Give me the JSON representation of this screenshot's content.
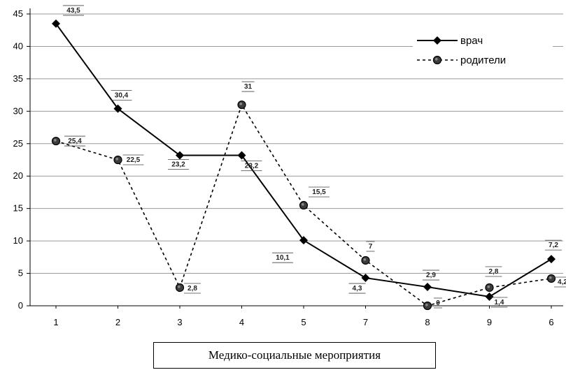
{
  "chart_data": {
    "type": "line",
    "categories": [
      "1",
      "2",
      "3",
      "4",
      "5",
      "7",
      "8",
      "9",
      "6"
    ],
    "series": [
      {
        "name": "врач",
        "values": [
          43.5,
          30.4,
          23.2,
          23.2,
          10.1,
          4.3,
          2.9,
          1.4,
          7.2
        ],
        "labels": [
          "43,5",
          "30,4",
          "23,2",
          "23,2",
          "10,1",
          "4,3",
          "2,9",
          "1,4",
          "7,2"
        ],
        "color": "#000000",
        "line_style": "solid",
        "marker": "diamond"
      },
      {
        "name": "родители",
        "values": [
          25.4,
          22.5,
          2.8,
          31,
          15.5,
          7,
          0,
          2.8,
          4.2
        ],
        "labels": [
          "25,4",
          "22,5",
          "2,8",
          "31",
          "15,5",
          "7",
          "0",
          "2,8",
          "4,2"
        ],
        "color": "#000000",
        "line_style": "dotted",
        "marker": "circle"
      }
    ],
    "ylim": [
      0,
      45
    ],
    "yticks": [
      "0",
      "5",
      "10",
      "15",
      "20",
      "25",
      "30",
      "35",
      "40",
      "45"
    ],
    "xlabel": "Медико-социальные мероприятия",
    "ylabel": "",
    "title": "",
    "grid": true,
    "legend_position": "top-right"
  }
}
